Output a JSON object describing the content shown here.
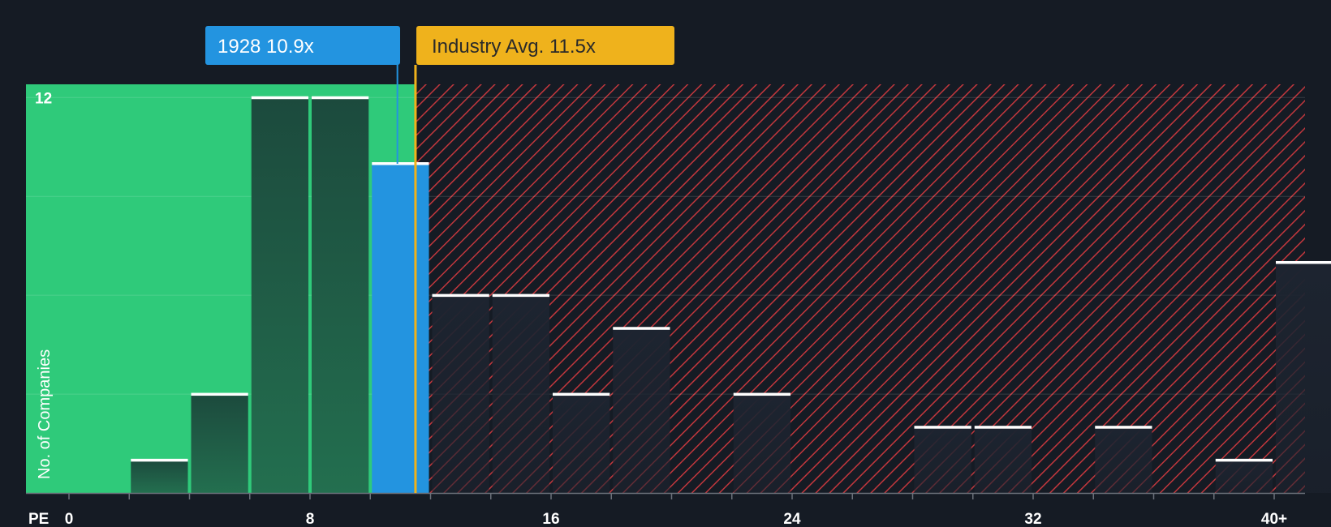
{
  "chart_data": {
    "type": "bar",
    "title": "",
    "xlabel": "PE",
    "ylabel": "No. of Companies",
    "xlim": [
      -2,
      41
    ],
    "ylim": [
      0,
      12.4
    ],
    "x_ticks": [
      {
        "value": 0,
        "label": "0"
      },
      {
        "value": 8,
        "label": "8"
      },
      {
        "value": 16,
        "label": "16"
      },
      {
        "value": 24,
        "label": "24"
      },
      {
        "value": 32,
        "label": "32"
      },
      {
        "value": 40,
        "label": "40+"
      }
    ],
    "y_ticks": [
      {
        "value": 12,
        "label": "12"
      }
    ],
    "gridlines_y": [
      3,
      6,
      9,
      12
    ],
    "bin_width": 2,
    "bins": [
      {
        "start": 2,
        "count": 1
      },
      {
        "start": 4,
        "count": 3
      },
      {
        "start": 6,
        "count": 12
      },
      {
        "start": 8,
        "count": 12
      },
      {
        "start": 10,
        "count": 10
      },
      {
        "start": 12,
        "count": 6
      },
      {
        "start": 14,
        "count": 6
      },
      {
        "start": 16,
        "count": 3
      },
      {
        "start": 18,
        "count": 5
      },
      {
        "start": 22,
        "count": 3
      },
      {
        "start": 28,
        "count": 2
      },
      {
        "start": 30,
        "count": 2
      },
      {
        "start": 34,
        "count": 2
      },
      {
        "start": 38,
        "count": 1
      },
      {
        "start": 40,
        "count": 7
      }
    ],
    "company": {
      "label": "1928 10.9x",
      "value": 10.9
    },
    "industry": {
      "label": "Industry Avg. 11.5x",
      "value": 11.5
    },
    "colors": {
      "background": "#151b24",
      "below_zone": "#2fca7a",
      "below_bar": "#1c4a3d",
      "company_bar": "#2394e0",
      "above_hatch": "#c2373d",
      "above_bar": "#1d2430",
      "bar_cap": "#ffffff",
      "company_callout": "#2394e0",
      "industry_callout": "#efb21c",
      "industry_text": "#2a2a2a"
    }
  }
}
